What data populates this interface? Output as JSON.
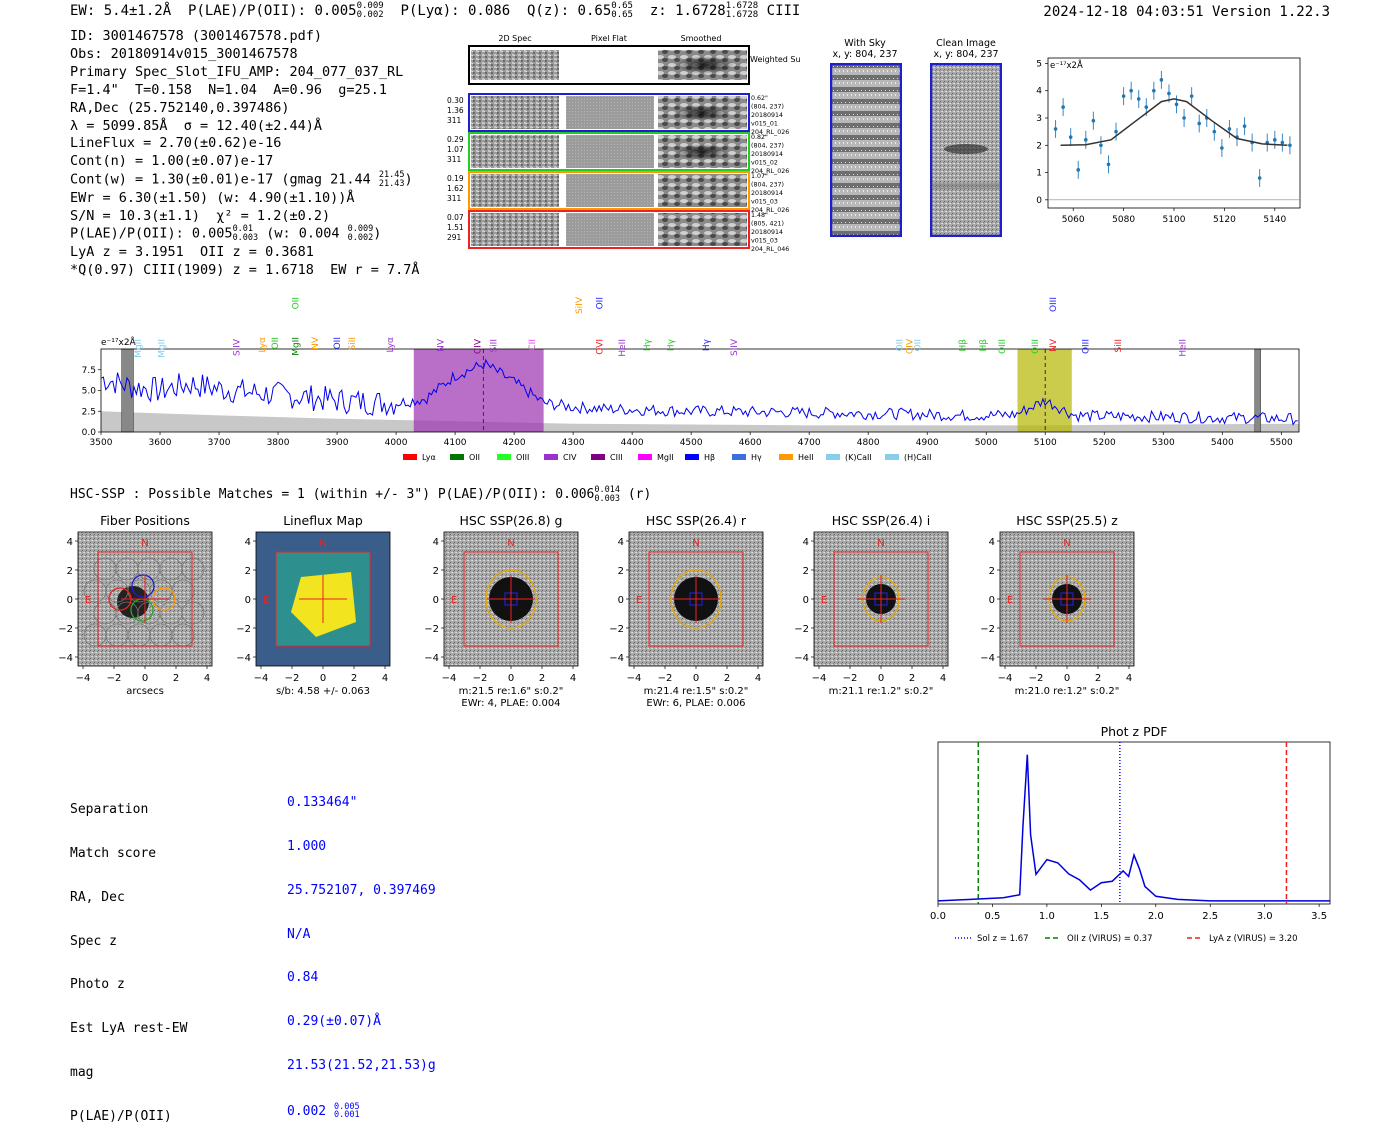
{
  "header": {
    "text": "EW: 5.4±1.2Å  P(LAE)/P(OII): 0.005₀.₀₀₂⁰·⁰⁰⁹  P(Lyα): 0.086  Q(z): 0.65  z: 1.6728  CIII",
    "ew": "EW: 5.4±1.2Å",
    "plae": "P(LAE)/P(OII): 0.005",
    "plae_sup": "0.009",
    "plae_sub": "0.002",
    "plya": "P(Lyα): 0.086",
    "qz": "Q(z): 0.65",
    "qz_sup": "0.65",
    "qz_sub": "0.65",
    "z": "z: 1.6728",
    "z_sup": "1.6728",
    "z_sub": "1.6728",
    "line": "CIII",
    "timestamp": "2024-12-18 04:03:51  Version 1.22.3"
  },
  "info": {
    "id": "ID: 3001467578 (3001467578.pdf)",
    "obs": "Obs: 20180914v015_3001467578",
    "primary": "Primary Spec_Slot_IFU_AMP: 204_077_037_RL",
    "params": "F=1.4\"  T=0.158  N=1.04  A=0.96  g=25.1",
    "radec": "RA,Dec (25.752140,0.397486)",
    "lambda": "λ = 5099.85Å  σ = 12.40(±2.44)Å",
    "lineflux": "LineFlux = 2.70(±0.62)e-16",
    "contn": "Cont(n) = 1.00(±0.07)e-17",
    "contw": "Cont(w) = 1.30(±0.01)e-17 (gmag 21.44",
    "contw_sup": "21.45",
    "contw_sub": "21.43",
    "ewr": "EWr = 6.30(±1.50) (w: 4.90(±1.10))Å",
    "sn": "S/N = 10.3(±1.1)  χ² = 1.2(±0.2)",
    "plae": "P(LAE)/P(OII): 0.005",
    "plae_sup": "0.01",
    "plae_sub": "0.003",
    "plae_w": "(w: 0.004",
    "plae_w_sup": "0.009",
    "plae_w_sub": "0.002",
    "lya": "LyA z = 3.1951  OII z = 0.3681",
    "q": "*Q(0.97) CIII(1909) z = 1.6718  EW r = 7.7Å"
  },
  "cutouts": {
    "col_2d": "2D Spec",
    "col_flat": "Pixel Flat",
    "col_smooth": "Smoothed",
    "weighted": "Weighted Sum",
    "rows": [
      {
        "left": [
          "0.30",
          "1.36",
          "311"
        ],
        "right": [
          "0.62\"",
          "(804, 237)",
          "20180914",
          "v015_01",
          "204_RL_026"
        ],
        "color": "#1f1fcf"
      },
      {
        "left": [
          "0.29",
          "1.07",
          "311"
        ],
        "right": [
          "0.82\"",
          "(804, 237)",
          "20180914",
          "v015_02",
          "204_RL_026"
        ],
        "color": "#22cc22"
      },
      {
        "left": [
          "0.19",
          "1.62",
          "311"
        ],
        "right": [
          "1.07\"",
          "(804, 237)",
          "20180914",
          "v015_03",
          "204_RL_026"
        ],
        "color": "#ff9900"
      },
      {
        "left": [
          "0.07",
          "1.51",
          "291"
        ],
        "right": [
          "1.48\"",
          "(805, 421)",
          "20180914",
          "v015_03",
          "204_RL_046"
        ],
        "color": "#ee2222"
      }
    ]
  },
  "sky": {
    "with_sky": "With Sky",
    "with_sky_xy": "x, y: 804, 237",
    "clean": "Clean Image",
    "clean_xy": "x, y: 804, 237"
  },
  "zoom_plot": {
    "yunit": "e⁻¹⁷x2Å",
    "xticks": [
      "5060",
      "5080",
      "5100",
      "5120",
      "5140"
    ],
    "yticks": [
      "0",
      "1",
      "2",
      "3",
      "4",
      "5"
    ]
  },
  "spectrum": {
    "yunit": "e⁻¹⁷x2Å",
    "yticks": [
      "0.0",
      "2.5",
      "5.0",
      "7.5"
    ],
    "xticks": [
      "3500",
      "3600",
      "3700",
      "3800",
      "3900",
      "4000",
      "4100",
      "4200",
      "4300",
      "4400",
      "4500",
      "4600",
      "4700",
      "4800",
      "4900",
      "5000",
      "5100",
      "5200",
      "5300",
      "5400",
      "5500"
    ],
    "lines": [
      {
        "label": "MgII",
        "x": 3568,
        "color": "#87ceeb",
        "row": 0
      },
      {
        "label": "MgII",
        "x": 3608,
        "color": "#87ceeb",
        "row": 0
      },
      {
        "label": "SiIV",
        "x": 3735,
        "color": "#9b30d0",
        "row": 0
      },
      {
        "label": "Lyα",
        "x": 3778,
        "color": "#ff9900",
        "row": 1
      },
      {
        "label": "OII",
        "x": 3800,
        "color": "#22cc22",
        "row": 1
      },
      {
        "label": "MgII",
        "x": 3835,
        "color": "#008000",
        "row": 1
      },
      {
        "label": "OII",
        "x": 3835,
        "color": "#22cc22",
        "row": 2
      },
      {
        "label": "NV",
        "x": 3868,
        "color": "#ff9900",
        "row": 1
      },
      {
        "label": "OII",
        "x": 3905,
        "color": "#1f1fff",
        "row": 1
      },
      {
        "label": "SiII",
        "x": 3930,
        "color": "#ff9900",
        "row": 1
      },
      {
        "label": "Lyα",
        "x": 3995,
        "color": "#9b30d0",
        "row": 1
      },
      {
        "label": "NV",
        "x": 4080,
        "color": "#9b30d0",
        "row": 0
      },
      {
        "label": "CIV",
        "x": 4143,
        "color": "#800080",
        "row": 0
      },
      {
        "label": "SiII",
        "x": 4170,
        "color": "#9b30d0",
        "row": 0
      },
      {
        "label": "CII",
        "x": 4235,
        "color": "#ee44ee",
        "row": 0
      },
      {
        "label": "SiIV",
        "x": 4315,
        "color": "#ff9900",
        "row": 2
      },
      {
        "label": "OVI",
        "x": 4350,
        "color": "#ee2222",
        "row": 0
      },
      {
        "label": "OII",
        "x": 4350,
        "color": "#1f1fff",
        "row": 2
      },
      {
        "label": "HeII",
        "x": 4388,
        "color": "#9b30d0",
        "row": 0
      },
      {
        "label": "Hγ",
        "x": 4430,
        "color": "#22cc22",
        "row": 0
      },
      {
        "label": "Hγ",
        "x": 4470,
        "color": "#22cc22",
        "row": 0
      },
      {
        "label": "Hγ",
        "x": 4530,
        "color": "#1f1fff",
        "row": 0
      },
      {
        "label": "SiIV",
        "x": 4578,
        "color": "#9b30d0",
        "row": 0
      },
      {
        "label": "OII",
        "x": 4858,
        "color": "#87ceeb",
        "row": 0
      },
      {
        "label": "CIV",
        "x": 4875,
        "color": "#ff9900",
        "row": 0
      },
      {
        "label": "OII",
        "x": 4889,
        "color": "#87ceeb",
        "row": 0
      },
      {
        "label": "Hβ",
        "x": 4965,
        "color": "#22cc22",
        "row": 0
      },
      {
        "label": "Hβ",
        "x": 5000,
        "color": "#22cc22",
        "row": 0
      },
      {
        "label": "OIII",
        "x": 5032,
        "color": "#22cc22",
        "row": 0
      },
      {
        "label": "OIII",
        "x": 5088,
        "color": "#22cc22",
        "row": 0
      },
      {
        "label": "NV",
        "x": 5118,
        "color": "#ee2222",
        "row": 0
      },
      {
        "label": "OIII",
        "x": 5118,
        "color": "#1f1fff",
        "row": 2
      },
      {
        "label": "OIII",
        "x": 5173,
        "color": "#1f1fff",
        "row": 0
      },
      {
        "label": "SiII",
        "x": 5228,
        "color": "#ee2222",
        "row": 0
      },
      {
        "label": "HeII",
        "x": 5338,
        "color": "#9b30d0",
        "row": 0
      }
    ],
    "legend": [
      {
        "label": "Lyα",
        "color": "#ff0000"
      },
      {
        "label": "OII",
        "color": "#007700"
      },
      {
        "label": "OIII",
        "color": "#22ff22"
      },
      {
        "label": "CIV",
        "color": "#9b30d0"
      },
      {
        "label": "CIII",
        "color": "#800080"
      },
      {
        "label": "MgII",
        "color": "#ff00ff"
      },
      {
        "label": "Hβ",
        "color": "#0000ff"
      },
      {
        "label": "Hγ",
        "color": "#3a6fe0"
      },
      {
        "label": "HeII",
        "color": "#ff9900"
      },
      {
        "label": "(K)CaII",
        "color": "#87ceeb"
      },
      {
        "label": "(H)CaII",
        "color": "#87ceeb"
      }
    ]
  },
  "hsc": {
    "header": "HSC-SSP : Possible Matches = 1 (within +/- 3\")  P(LAE)/P(OII): 0.006",
    "header_sup": "0.014",
    "header_sub": "0.003",
    "header_tail": "(r)",
    "panels": [
      {
        "title": "Fiber Positions",
        "caption1": "arcsecs",
        "caption2": ""
      },
      {
        "title": "Lineflux Map",
        "caption1": "s/b: 4.58 +/- 0.063",
        "caption2": ""
      },
      {
        "title": "HSC SSP(26.8) g",
        "caption1": "m:21.5  re:1.6\"  s:0.2\"",
        "caption2": "EWr: 4, PLAE: 0.004"
      },
      {
        "title": "HSC SSP(26.4) r",
        "caption1": "m:21.4  re:1.5\"  s:0.2\"",
        "caption2": "EWr: 6, PLAE: 0.006"
      },
      {
        "title": "HSC SSP(26.4) i",
        "caption1": "m:21.1  re:1.2\"  s:0.2\"",
        "caption2": ""
      },
      {
        "title": "HSC SSP(25.5) z",
        "caption1": "m:21.0  re:1.2\"  s:0.2\"",
        "caption2": ""
      }
    ],
    "ticks": [
      "−4",
      "−2",
      "0",
      "2",
      "4"
    ],
    "north": "N",
    "east": "E"
  },
  "match": {
    "labels": [
      "Separation",
      "Match score",
      "RA, Dec",
      "Spec z",
      "Photo z",
      "Est LyA rest-EW",
      "mag",
      "P(LAE)/P(OII)"
    ],
    "values": [
      "0.133464\"",
      "1.000",
      "25.752107, 0.397469",
      "N/A",
      "0.84",
      "0.29(±0.07)Å",
      "21.53(21.52,21.53)g",
      "0.002"
    ],
    "plae_sup": "0.005",
    "plae_sub": "0.001"
  },
  "photz": {
    "title": "Phot z PDF",
    "xticks": [
      "0.0",
      "0.5",
      "1.0",
      "1.5",
      "2.0",
      "2.5",
      "3.0",
      "3.5"
    ],
    "legend": [
      {
        "label": "Sol z = 1.67",
        "color": "#0000ff",
        "dash": "1,2"
      },
      {
        "label": "OII z (VIRUS) = 0.37",
        "color": "#008000",
        "dash": "5,3"
      },
      {
        "label": "LyA z (VIRUS) = 3.20",
        "color": "#ee2222",
        "dash": "5,3"
      }
    ]
  },
  "chart_data": [
    {
      "type": "scatter",
      "title": "",
      "xlabel": "",
      "ylabel": "e-17 x2Å",
      "xlim": [
        5050,
        5150
      ],
      "ylim": [
        -0.3,
        5.2
      ],
      "series": [
        {
          "name": "data",
          "x": [
            5053,
            5056,
            5059,
            5062,
            5065,
            5068,
            5071,
            5074,
            5077,
            5080,
            5083,
            5086,
            5089,
            5092,
            5095,
            5098,
            5101,
            5104,
            5107,
            5110,
            5113,
            5116,
            5119,
            5122,
            5125,
            5128,
            5131,
            5134,
            5137,
            5140,
            5143,
            5146
          ],
          "y": [
            2.6,
            3.4,
            2.3,
            1.1,
            2.2,
            2.9,
            2.0,
            1.3,
            2.5,
            3.8,
            4.0,
            3.7,
            3.4,
            4.0,
            4.4,
            3.9,
            3.5,
            3.0,
            3.8,
            2.8,
            3.0,
            2.5,
            1.9,
            2.6,
            2.3,
            2.7,
            2.1,
            0.8,
            2.1,
            2.2,
            2.1,
            2.0
          ]
        },
        {
          "name": "fit",
          "x": [
            5055,
            5065,
            5075,
            5085,
            5095,
            5100,
            5105,
            5115,
            5125,
            5135,
            5145
          ],
          "y": [
            2.0,
            2.02,
            2.2,
            2.9,
            3.6,
            3.7,
            3.6,
            2.9,
            2.25,
            2.05,
            2.0
          ]
        }
      ]
    },
    {
      "type": "line",
      "title": "",
      "xlabel": "",
      "ylabel": "e-17 x2Å",
      "xlim": [
        3500,
        5530
      ],
      "ylim": [
        0,
        10
      ],
      "highlight_ranges": [
        [
          4030,
          4250,
          "#9b30b0"
        ],
        [
          5053,
          5145,
          "#b5b500"
        ]
      ],
      "marked_x": [
        4148,
        5100
      ],
      "series": [
        {
          "name": "spectrum",
          "x": [
            3500,
            3550,
            3600,
            3650,
            3700,
            3750,
            3800,
            3850,
            3900,
            3950,
            4000,
            4050,
            4100,
            4150,
            4200,
            4250,
            4300,
            4350,
            4400,
            4450,
            4500,
            4550,
            4600,
            4650,
            4700,
            4750,
            4800,
            4850,
            4900,
            4950,
            5000,
            5050,
            5100,
            5150,
            5200,
            5250,
            5300,
            5350,
            5400,
            5450,
            5500,
            5530
          ],
          "y": [
            6.5,
            5.5,
            5.0,
            5.8,
            5.2,
            4.8,
            4.5,
            4.2,
            3.8,
            3.6,
            3.5,
            4.0,
            6.8,
            8.2,
            6.0,
            3.5,
            3.0,
            2.8,
            2.7,
            2.6,
            2.5,
            2.5,
            2.4,
            2.4,
            2.3,
            2.3,
            2.2,
            2.2,
            2.1,
            2.0,
            2.0,
            2.1,
            3.8,
            2.0,
            1.9,
            1.9,
            1.8,
            1.8,
            1.7,
            1.7,
            1.6,
            1.6
          ]
        },
        {
          "name": "sky",
          "x": [
            3500,
            3700,
            3900,
            4100,
            4300,
            4500,
            4700,
            4900,
            5100,
            5300,
            5530
          ],
          "y": [
            2.5,
            2.0,
            1.6,
            1.3,
            1.0,
            0.9,
            0.8,
            0.8,
            0.8,
            0.9,
            1.0
          ]
        }
      ]
    },
    {
      "type": "line",
      "title": "Phot z PDF",
      "xlabel": "",
      "ylabel": "",
      "xlim": [
        0,
        3.6
      ],
      "ylim": [
        0,
        1
      ],
      "series": [
        {
          "name": "pdf",
          "x": [
            0.0,
            0.3,
            0.6,
            0.75,
            0.78,
            0.82,
            0.85,
            0.9,
            1.0,
            1.1,
            1.2,
            1.3,
            1.4,
            1.5,
            1.6,
            1.7,
            1.75,
            1.8,
            1.85,
            1.9,
            2.0,
            2.2,
            2.5,
            3.0,
            3.6
          ],
          "y": [
            0.02,
            0.03,
            0.04,
            0.06,
            0.5,
            0.97,
            0.45,
            0.2,
            0.3,
            0.25,
            0.2,
            0.15,
            0.1,
            0.12,
            0.15,
            0.22,
            0.18,
            0.3,
            0.22,
            0.12,
            0.05,
            0.03,
            0.02,
            0.02,
            0.02
          ]
        }
      ],
      "vlines": [
        {
          "x": 1.67,
          "label": "Sol z = 1.67"
        },
        {
          "x": 0.37,
          "label": "OII z (VIRUS) = 0.37"
        },
        {
          "x": 3.2,
          "label": "LyA z (VIRUS) = 3.20"
        }
      ]
    }
  ]
}
